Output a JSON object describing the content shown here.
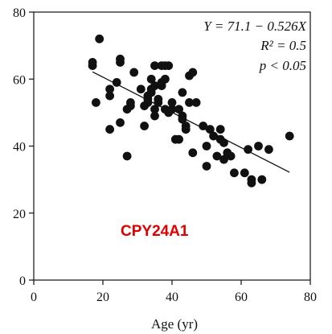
{
  "chart_data": {
    "type": "scatter",
    "title": "",
    "xlabel": "Age (yr)",
    "ylabel": "",
    "xlim": [
      0,
      80
    ],
    "ylim": [
      0,
      80
    ],
    "x_ticks": [
      "0",
      "20",
      "40",
      "60",
      "80"
    ],
    "y_ticks": [
      "0",
      "20",
      "40",
      "60",
      "80"
    ],
    "grid": false,
    "legend": "none",
    "annotations": {
      "equation": "Y = 71.1 − 0.526X",
      "r_squared": "R² = 0.5",
      "p_value": "p < 0.05",
      "gene": "CPY24A1"
    },
    "regression": {
      "intercept": 71.1,
      "slope": -0.526,
      "x_range": [
        17,
        74
      ]
    },
    "colors": {
      "points": "#111111",
      "line": "#111111",
      "gene_label": "#e00000"
    },
    "points": [
      [
        17,
        64
      ],
      [
        17,
        65
      ],
      [
        18,
        53
      ],
      [
        19,
        72
      ],
      [
        22,
        45
      ],
      [
        22,
        55
      ],
      [
        22,
        57
      ],
      [
        24,
        59
      ],
      [
        25,
        65
      ],
      [
        25,
        66
      ],
      [
        25,
        47
      ],
      [
        27,
        37
      ],
      [
        27,
        51
      ],
      [
        28,
        52
      ],
      [
        28,
        53
      ],
      [
        29,
        62
      ],
      [
        31,
        57
      ],
      [
        32,
        46
      ],
      [
        32,
        52
      ],
      [
        33,
        55
      ],
      [
        33,
        53
      ],
      [
        33,
        54
      ],
      [
        34,
        57
      ],
      [
        34,
        60
      ],
      [
        34,
        56
      ],
      [
        35,
        49
      ],
      [
        35,
        51
      ],
      [
        35,
        64
      ],
      [
        35,
        58
      ],
      [
        36,
        54
      ],
      [
        36,
        53
      ],
      [
        37,
        58
      ],
      [
        37,
        64
      ],
      [
        37,
        59
      ],
      [
        38,
        64
      ],
      [
        38,
        60
      ],
      [
        38,
        51
      ],
      [
        39,
        64
      ],
      [
        39,
        50
      ],
      [
        40,
        53
      ],
      [
        40,
        51
      ],
      [
        41,
        42
      ],
      [
        42,
        42
      ],
      [
        42,
        51
      ],
      [
        43,
        49
      ],
      [
        43,
        48
      ],
      [
        43,
        56
      ],
      [
        44,
        46
      ],
      [
        44,
        45
      ],
      [
        45,
        61
      ],
      [
        45,
        53
      ],
      [
        46,
        62
      ],
      [
        46,
        38
      ],
      [
        47,
        53
      ],
      [
        49,
        46
      ],
      [
        50,
        40
      ],
      [
        50,
        34
      ],
      [
        51,
        45
      ],
      [
        52,
        43
      ],
      [
        53,
        37
      ],
      [
        54,
        42
      ],
      [
        54,
        45
      ],
      [
        55,
        41
      ],
      [
        55,
        36
      ],
      [
        56,
        38
      ],
      [
        57,
        37
      ],
      [
        58,
        32
      ],
      [
        61,
        32
      ],
      [
        62,
        39
      ],
      [
        63,
        30
      ],
      [
        63,
        29
      ],
      [
        65,
        40
      ],
      [
        66,
        30
      ],
      [
        68,
        39
      ],
      [
        74,
        43
      ]
    ]
  }
}
